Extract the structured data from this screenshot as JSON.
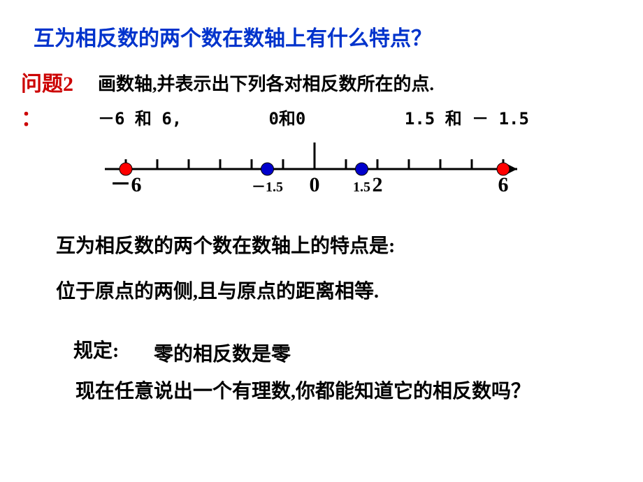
{
  "title": "互为相反数的两个数在数轴上有什么特点？",
  "question_label": "问题2",
  "question_colon": "：",
  "question_text": "画数轴,并表示出下列各对相反数所在的点.",
  "pair1": "－6 和 6,",
  "pair2": "0和0",
  "pair3": "1.5 和 － 1.5",
  "axis": {
    "min": -6,
    "max": 6,
    "tick_step": 1,
    "major_tick_height_above": 38,
    "tick_height": 14,
    "line_color": "#000000",
    "line_width": 3,
    "points": [
      {
        "x": -6,
        "label": "－6",
        "label_fontsize": 30,
        "color": "#ff0000",
        "radius": 9
      },
      {
        "x": -1.5,
        "label": "－1.5",
        "label_fontsize": 20,
        "color": "#0000cc",
        "radius": 9
      },
      {
        "x": 0,
        "label": "0",
        "label_fontsize": 30,
        "color": null,
        "radius": 0
      },
      {
        "x": 1.5,
        "label": "1.5",
        "label_fontsize": 20,
        "color": "#0000cc",
        "radius": 9
      },
      {
        "x": 2,
        "label": "2",
        "label_fontsize": 30,
        "color": null,
        "radius": 0
      },
      {
        "x": 6,
        "label": "6",
        "label_fontsize": 30,
        "color": "#ff0000",
        "radius": 9
      }
    ]
  },
  "feature_title": "互为相反数的两个数在数轴上的特点是:",
  "feature_body": "位于原点的两侧,且与原点的距离相等.",
  "rule_label": "规定:",
  "rule_body": "零的相反数是零",
  "challenge": "现在任意说出一个有理数,你都能知道它的相反数吗？"
}
